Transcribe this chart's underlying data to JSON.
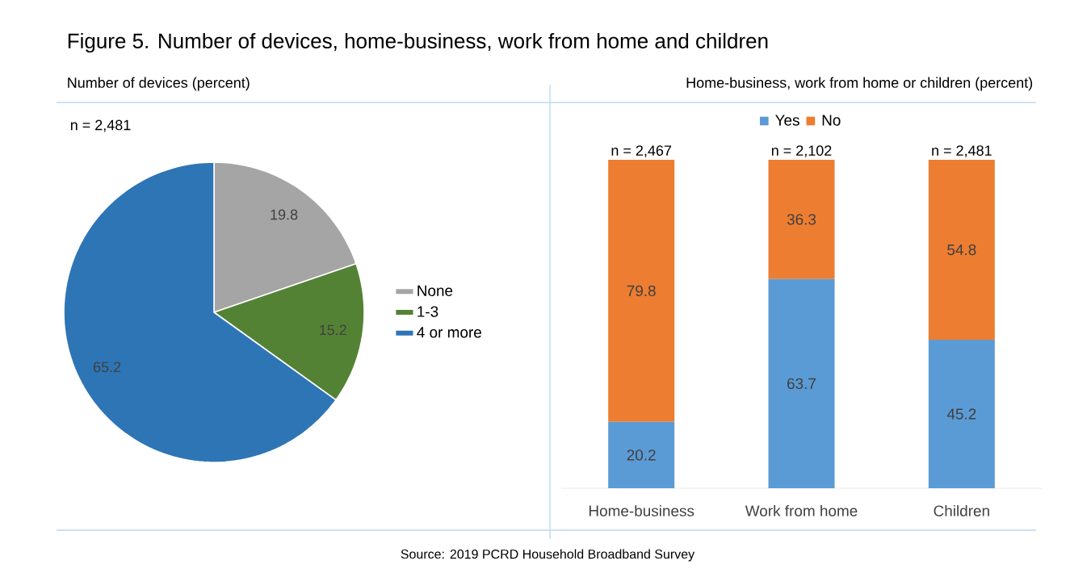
{
  "chart_data": [
    {
      "type": "pie",
      "title": "Figure 5. Number of devices, home-business, work from home and children",
      "subtitle": "Number of devices (percent)",
      "categories": [
        "None",
        "1-3",
        "4 or more"
      ],
      "values": [
        19.8,
        15.2,
        65.2
      ],
      "colors": [
        "#a5a5a5",
        "#548235",
        "#2e75b6"
      ],
      "data_labels": true,
      "legend": "right",
      "annotations": [
        "n = 2,481",
        "Source: 2019 PCRD Household Broadband Survey"
      ]
    },
    {
      "type": "bar",
      "title": "Home-business, work from home or children (percent)",
      "categories": [
        "Home-business",
        "Work from home",
        "Children"
      ],
      "stacked": true,
      "data_labels": true,
      "legend": "top",
      "tick_labels": "x",
      "series": [
        {
          "name": "Yes",
          "color": "#5b9bd5",
          "values": [
            20.2,
            63.7,
            45.2
          ]
        },
        {
          "name": "No",
          "color": "#ed7d31",
          "values": [
            79.8,
            36.3,
            54.8
          ]
        }
      ],
      "annotations": [
        {
          "text": "n = 2,467",
          "x": "Home-business",
          "y": 100
        },
        {
          "text": "n = 2,102",
          "x": "Work from home",
          "y": 100
        },
        {
          "text": "n = 2,481",
          "x": "Children",
          "y": 100
        }
      ]
    }
  ]
}
